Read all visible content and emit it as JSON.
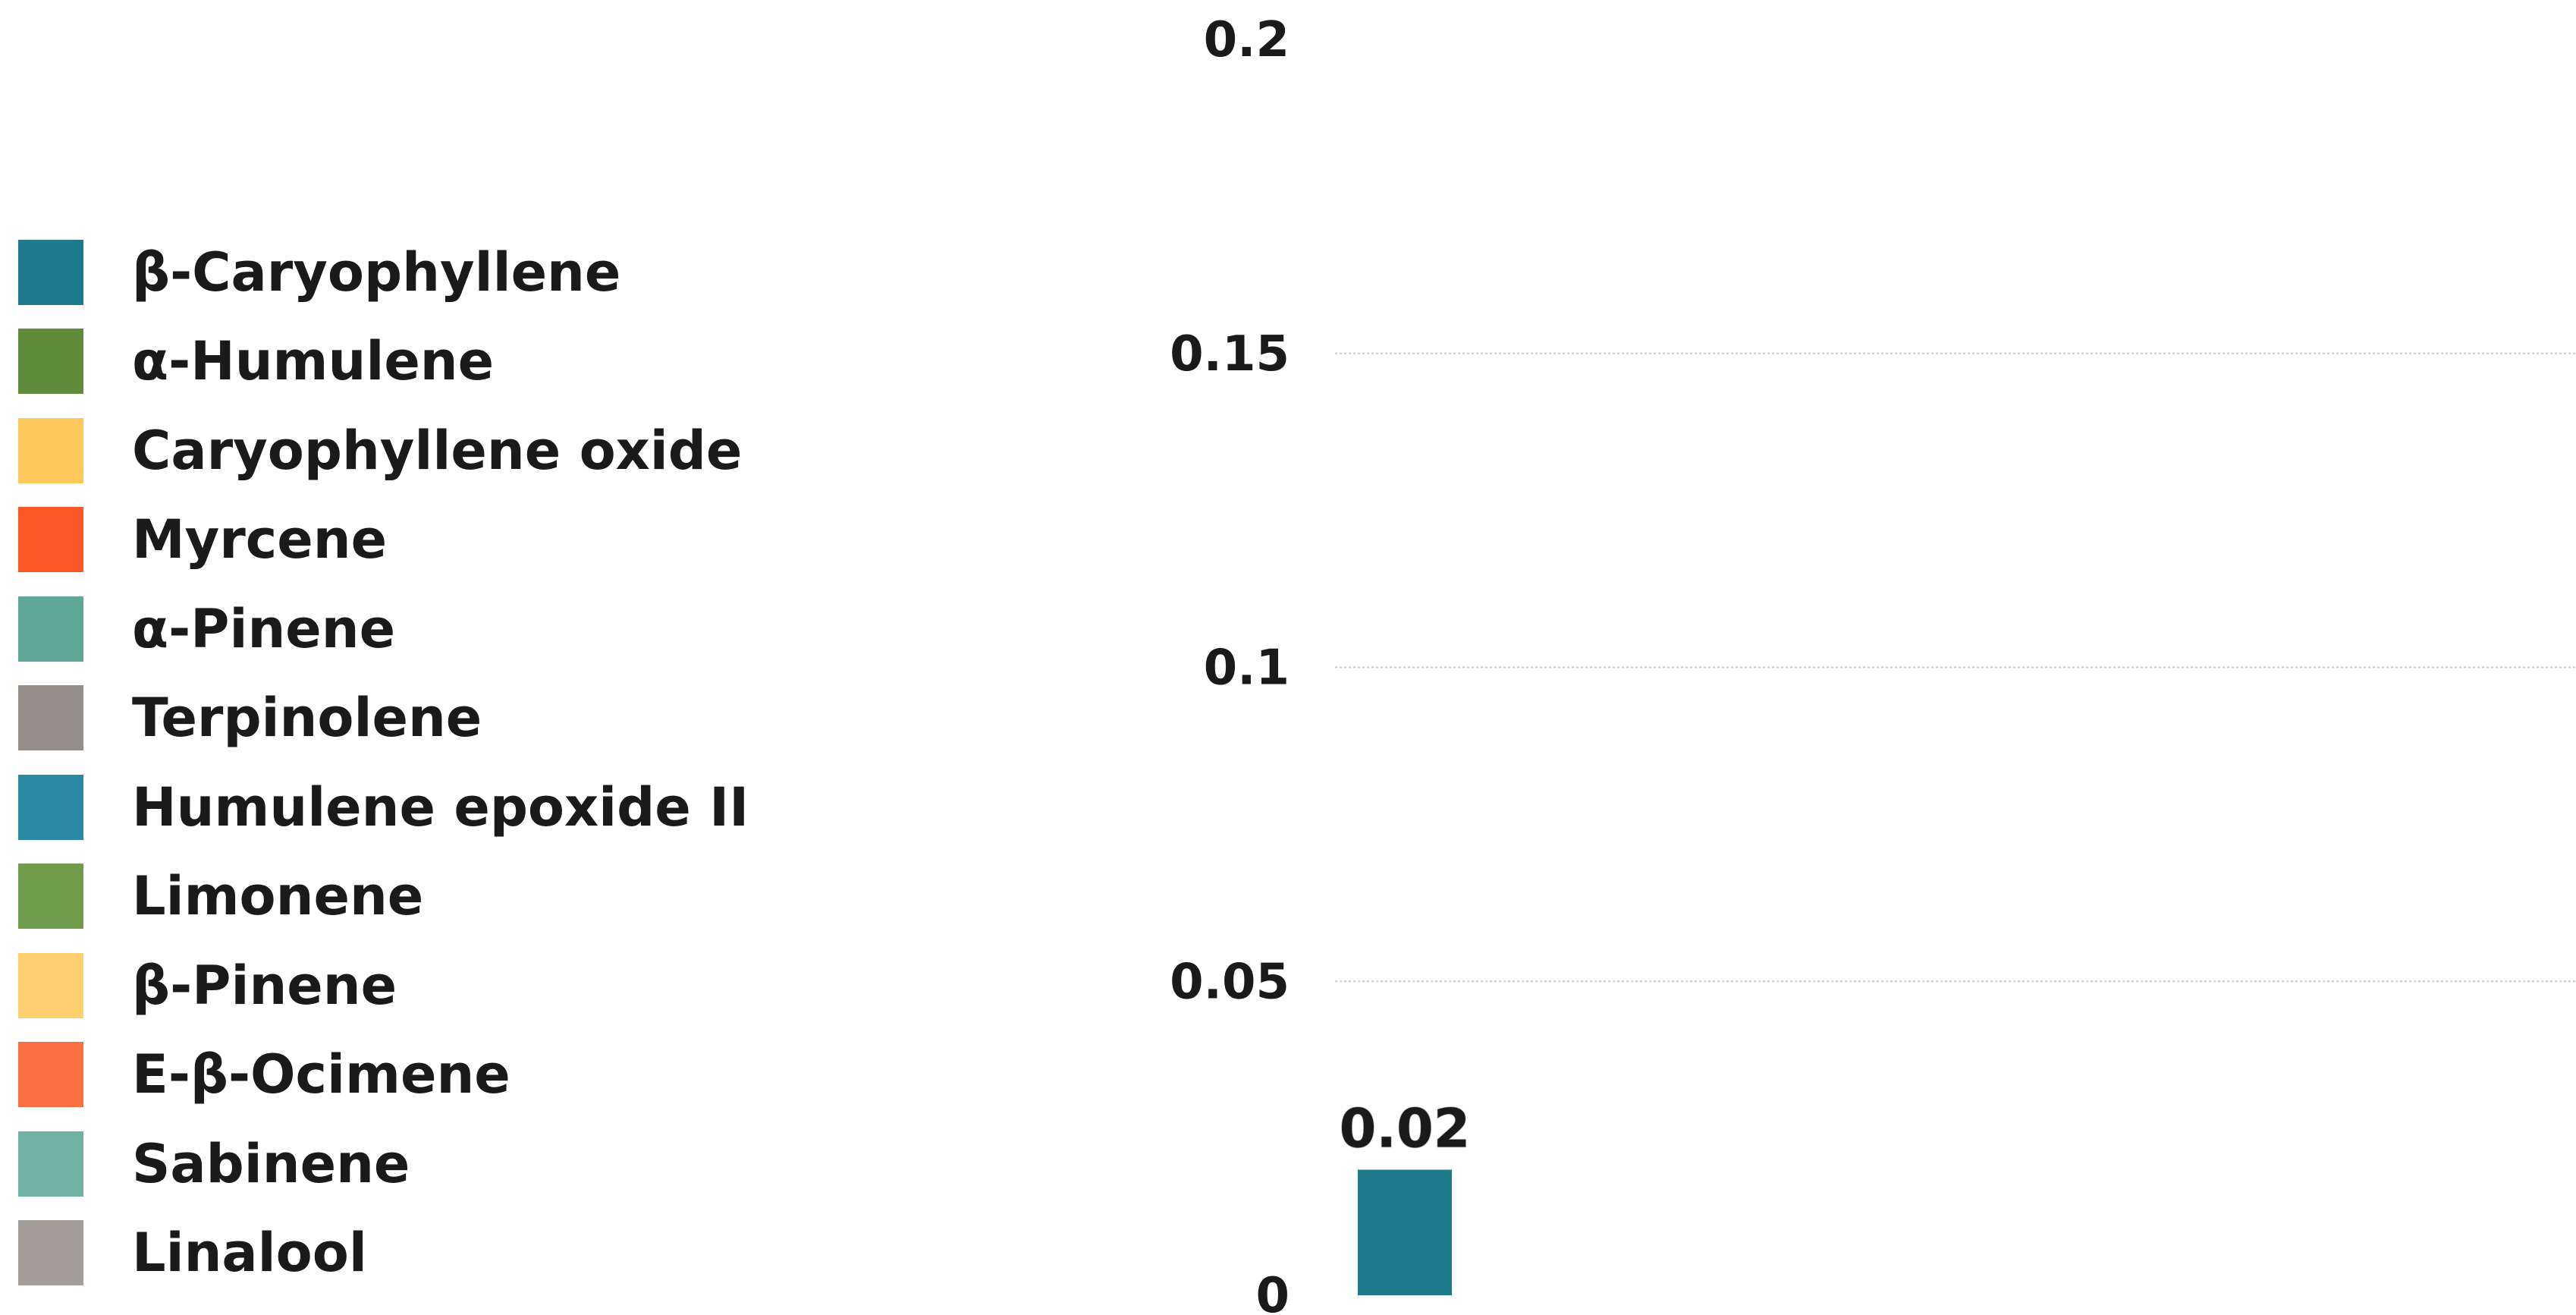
{
  "chart_data": {
    "type": "bar",
    "categories": [
      "β-Caryophyllene"
    ],
    "values": [
      0.02
    ],
    "data_labels": [
      "0.02"
    ],
    "ylim": [
      0,
      0.2
    ],
    "yticks": [
      0,
      0.05,
      0.1,
      0.15,
      0.2
    ],
    "ytick_labels": [
      "0",
      "0.05",
      "0.1",
      "0.15",
      "0.2"
    ],
    "grid": true,
    "legend_position": "left",
    "legend": [
      {
        "label": "β-Caryophyllene",
        "color": "#1f7a8c"
      },
      {
        "label": "α-Humulene",
        "color": "#5e8c3a"
      },
      {
        "label": "Caryophyllene oxide",
        "color": "#ffc85c"
      },
      {
        "label": "Myrcene",
        "color": "#fb5a28"
      },
      {
        "label": "α-Pinene",
        "color": "#5fa898"
      },
      {
        "label": "Terpinolene",
        "color": "#968f89"
      },
      {
        "label": "Humulene epoxide II",
        "color": "#2b88a3"
      },
      {
        "label": "Limonene",
        "color": "#6f9c4a"
      },
      {
        "label": "β-Pinene",
        "color": "#ffcf70"
      },
      {
        "label": "E-β-Ocimene",
        "color": "#fa7042"
      },
      {
        "label": "Sabinene",
        "color": "#70b2a5"
      },
      {
        "label": "Linalool",
        "color": "#a29d98"
      }
    ]
  }
}
